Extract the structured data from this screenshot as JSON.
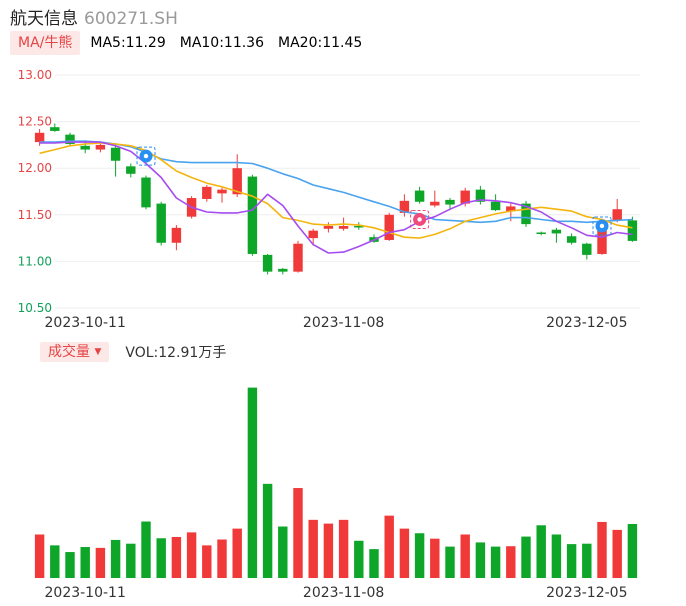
{
  "header": {
    "stock_name": "航天信息",
    "stock_code": "600271.SH"
  },
  "legend": {
    "ma_tag": "MA/牛熊",
    "ma5": "MA5:11.29",
    "ma10": "MA10:11.36",
    "ma20": "MA20:11.45"
  },
  "volume_legend": {
    "tag": "成交量",
    "text": "VOL:12.91万手"
  },
  "colors": {
    "up": "#f03a3a",
    "down": "#0da628",
    "ma5": "#a64cf0",
    "ma10": "#f5b50f",
    "ma20": "#4aa3ee",
    "axis_red": "#e54545",
    "axis_green": "#12a05a",
    "grid": "#eeeeee"
  },
  "chart_data": [
    {
      "type": "candlestick",
      "y_ticks": [
        "13.00",
        "12.50",
        "12.00",
        "11.50",
        "11.00",
        "10.50"
      ],
      "ylim": [
        10.5,
        13.0
      ],
      "x_labels": [
        "2023-10-11",
        "2023-11-08",
        "2023-12-05"
      ],
      "candles": [
        {
          "o": 12.28,
          "h": 12.42,
          "l": 12.24,
          "c": 12.38
        },
        {
          "o": 12.44,
          "h": 12.48,
          "l": 12.39,
          "c": 12.4
        },
        {
          "o": 12.36,
          "h": 12.38,
          "l": 12.24,
          "c": 12.26
        },
        {
          "o": 12.24,
          "h": 12.3,
          "l": 12.16,
          "c": 12.2
        },
        {
          "o": 12.2,
          "h": 12.28,
          "l": 12.17,
          "c": 12.25
        },
        {
          "o": 12.22,
          "h": 12.26,
          "l": 11.91,
          "c": 12.08
        },
        {
          "o": 12.02,
          "h": 12.05,
          "l": 11.9,
          "c": 11.94
        },
        {
          "o": 11.9,
          "h": 11.92,
          "l": 11.56,
          "c": 11.58
        },
        {
          "o": 11.62,
          "h": 11.64,
          "l": 11.17,
          "c": 11.2
        },
        {
          "o": 11.2,
          "h": 11.39,
          "l": 11.12,
          "c": 11.36
        },
        {
          "o": 11.48,
          "h": 11.7,
          "l": 11.46,
          "c": 11.68
        },
        {
          "o": 11.67,
          "h": 11.82,
          "l": 11.64,
          "c": 11.8
        },
        {
          "o": 11.73,
          "h": 11.79,
          "l": 11.63,
          "c": 11.77
        },
        {
          "o": 11.72,
          "h": 12.15,
          "l": 11.69,
          "c": 12.0
        },
        {
          "o": 11.91,
          "h": 11.93,
          "l": 11.06,
          "c": 11.08
        },
        {
          "o": 11.07,
          "h": 11.08,
          "l": 10.86,
          "c": 10.89
        },
        {
          "o": 10.92,
          "h": 10.93,
          "l": 10.86,
          "c": 10.89
        },
        {
          "o": 10.89,
          "h": 11.22,
          "l": 10.88,
          "c": 11.19
        },
        {
          "o": 11.25,
          "h": 11.35,
          "l": 11.17,
          "c": 11.33
        },
        {
          "o": 11.35,
          "h": 11.42,
          "l": 11.31,
          "c": 11.38
        },
        {
          "o": 11.35,
          "h": 11.47,
          "l": 11.33,
          "c": 11.38
        },
        {
          "o": 11.38,
          "h": 11.42,
          "l": 11.34,
          "c": 11.37
        },
        {
          "o": 11.26,
          "h": 11.29,
          "l": 11.2,
          "c": 11.21
        },
        {
          "o": 11.23,
          "h": 11.52,
          "l": 11.22,
          "c": 11.5
        },
        {
          "o": 11.52,
          "h": 11.72,
          "l": 11.48,
          "c": 11.65
        },
        {
          "o": 11.76,
          "h": 11.8,
          "l": 11.62,
          "c": 11.64
        },
        {
          "o": 11.6,
          "h": 11.76,
          "l": 11.58,
          "c": 11.64
        },
        {
          "o": 11.66,
          "h": 11.68,
          "l": 11.55,
          "c": 11.61
        },
        {
          "o": 11.62,
          "h": 11.79,
          "l": 11.59,
          "c": 11.76
        },
        {
          "o": 11.77,
          "h": 11.81,
          "l": 11.61,
          "c": 11.64
        },
        {
          "o": 11.64,
          "h": 11.72,
          "l": 11.54,
          "c": 11.55
        },
        {
          "o": 11.54,
          "h": 11.62,
          "l": 11.43,
          "c": 11.59
        },
        {
          "o": 11.62,
          "h": 11.65,
          "l": 11.37,
          "c": 11.4
        },
        {
          "o": 11.31,
          "h": 11.32,
          "l": 11.28,
          "c": 11.3
        },
        {
          "o": 11.34,
          "h": 11.36,
          "l": 11.2,
          "c": 11.3
        },
        {
          "o": 11.27,
          "h": 11.3,
          "l": 11.18,
          "c": 11.2
        },
        {
          "o": 11.19,
          "h": 11.2,
          "l": 11.02,
          "c": 11.07
        },
        {
          "o": 11.08,
          "h": 11.42,
          "l": 11.07,
          "c": 11.4
        },
        {
          "o": 11.44,
          "h": 11.67,
          "l": 11.42,
          "c": 11.56
        },
        {
          "o": 11.44,
          "h": 11.48,
          "l": 11.21,
          "c": 11.22
        }
      ],
      "ma5": [
        12.27,
        12.27,
        12.28,
        12.28,
        12.28,
        12.24,
        12.18,
        12.05,
        11.9,
        11.68,
        11.58,
        11.53,
        11.52,
        11.52,
        11.55,
        11.72,
        11.6,
        11.38,
        11.18,
        11.09,
        11.1,
        11.16,
        11.23,
        11.31,
        11.34,
        11.43,
        11.48,
        11.56,
        11.63,
        11.66,
        11.65,
        11.63,
        11.59,
        11.53,
        11.43,
        11.36,
        11.28,
        11.26,
        11.31,
        11.29
      ],
      "ma10": [
        12.16,
        12.2,
        12.24,
        12.26,
        12.27,
        12.26,
        12.24,
        12.19,
        12.09,
        11.97,
        11.9,
        11.84,
        11.8,
        11.75,
        11.7,
        11.62,
        11.47,
        11.44,
        11.4,
        11.39,
        11.4,
        11.39,
        11.36,
        11.31,
        11.26,
        11.25,
        11.29,
        11.35,
        11.43,
        11.47,
        11.51,
        11.54,
        11.56,
        11.58,
        11.56,
        11.54,
        11.48,
        11.45,
        11.39,
        11.36
      ],
      "ma20": [
        12.28,
        12.28,
        12.29,
        12.29,
        12.28,
        12.26,
        12.23,
        12.17,
        12.1,
        12.07,
        12.06,
        12.06,
        12.06,
        12.06,
        12.05,
        12.0,
        11.94,
        11.89,
        11.82,
        11.78,
        11.74,
        11.69,
        11.64,
        11.59,
        11.53,
        11.51,
        11.45,
        11.44,
        11.43,
        11.42,
        11.43,
        11.47,
        11.47,
        11.45,
        11.43,
        11.43,
        11.42,
        11.43,
        11.44,
        11.45
      ]
    },
    {
      "type": "bar",
      "name": "成交量",
      "x_labels": [
        "2023-10-11",
        "2023-11-08",
        "2023-12-05"
      ],
      "values": [
        10.4,
        7.8,
        6.2,
        7.4,
        7.2,
        9.1,
        8.2,
        13.5,
        9.5,
        9.8,
        10.9,
        7.8,
        9.2,
        11.8,
        45.5,
        22.5,
        12.3,
        21.5,
        13.9,
        13.0,
        13.9,
        8.9,
        6.9,
        14.9,
        11.8,
        10.7,
        9.4,
        7.5,
        10.4,
        8.5,
        7.5,
        7.6,
        9.9,
        12.6,
        10.4,
        8.1,
        8.2,
        13.4,
        11.5,
        12.91
      ]
    }
  ]
}
